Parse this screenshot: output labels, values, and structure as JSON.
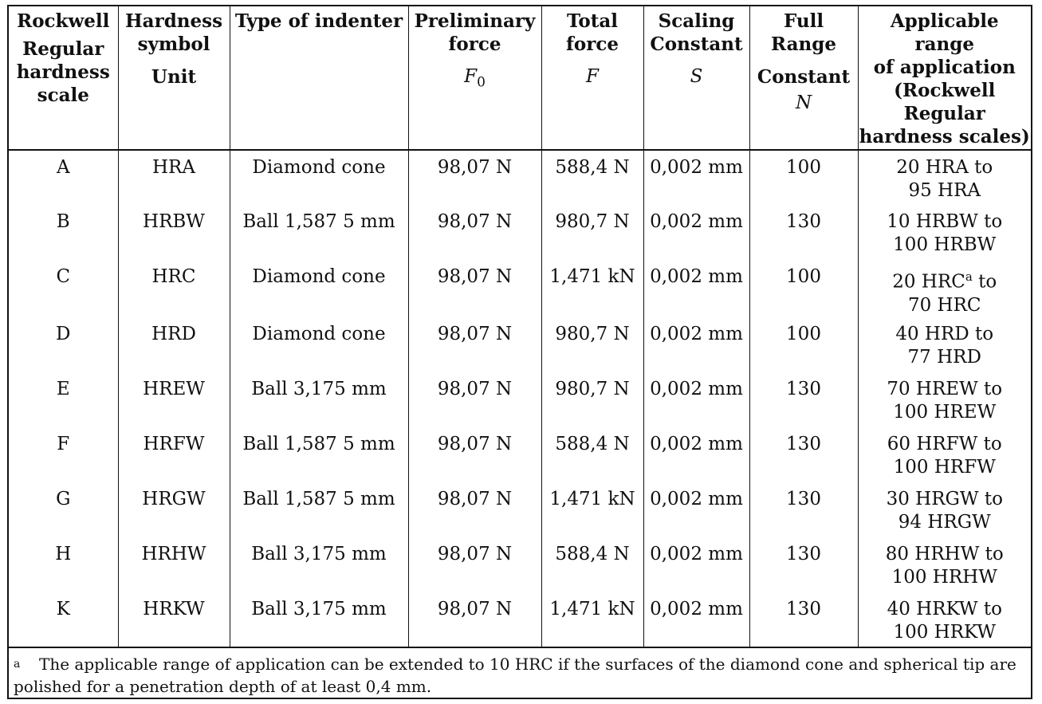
{
  "headers": {
    "scale": [
      "Rockwell",
      "Regular",
      "hardness",
      "scale"
    ],
    "symbol": [
      "Hardness",
      "symbol",
      "Unit"
    ],
    "indenter": [
      "Type of indenter"
    ],
    "preliminary": [
      "Preliminary",
      "force"
    ],
    "preliminary_symbol": "F",
    "preliminary_symbol_sub": "0",
    "total": [
      "Total",
      "force"
    ],
    "total_symbol": "F",
    "scaling": [
      "Scaling",
      "Constant"
    ],
    "scaling_symbol": "S",
    "full": [
      "Full",
      "Range",
      "Constant"
    ],
    "full_symbol": "N",
    "range": [
      "Applicable",
      "range",
      "of application",
      "(Rockwell",
      "Regular",
      "hardness scales)"
    ]
  },
  "rows": [
    {
      "scale": "A",
      "symbol": "HRA",
      "indenter": "Diamond cone",
      "f0": "98,07 N",
      "f": "588,4 N",
      "s": "0,002 mm",
      "n": "100",
      "range1": "20 HRA to",
      "range2": "95 HRA"
    },
    {
      "scale": "B",
      "symbol": "HRBW",
      "indenter": "Ball 1,587 5 mm",
      "f0": "98,07 N",
      "f": "980,7 N",
      "s": "0,002 mm",
      "n": "130",
      "range1": "10 HRBW to",
      "range2": "100 HRBW"
    },
    {
      "scale": "C",
      "symbol": "HRC",
      "indenter": "Diamond cone",
      "f0": "98,07 N",
      "f": "1,471 kN",
      "s": "0,002 mm",
      "n": "100",
      "range1": "20 HRC",
      "range1_sup": "a",
      "range1_tail": " to",
      "range2": "70 HRC"
    },
    {
      "scale": "D",
      "symbol": "HRD",
      "indenter": "Diamond cone",
      "f0": "98,07 N",
      "f": "980,7 N",
      "s": "0,002 mm",
      "n": "100",
      "range1": "40 HRD to",
      "range2": "77 HRD"
    },
    {
      "scale": "E",
      "symbol": "HREW",
      "indenter": "Ball 3,175 mm",
      "f0": "98,07 N",
      "f": "980,7 N",
      "s": "0,002 mm",
      "n": "130",
      "range1": "70 HREW to",
      "range2": "100 HREW"
    },
    {
      "scale": "F",
      "symbol": "HRFW",
      "indenter": "Ball 1,587 5 mm",
      "f0": "98,07 N",
      "f": "588,4 N",
      "s": "0,002 mm",
      "n": "130",
      "range1": "60 HRFW to",
      "range2": "100 HRFW"
    },
    {
      "scale": "G",
      "symbol": "HRGW",
      "indenter": "Ball 1,587 5 mm",
      "f0": "98,07 N",
      "f": "1,471 kN",
      "s": "0,002 mm",
      "n": "130",
      "range1": "30 HRGW to",
      "range2": "94 HRGW"
    },
    {
      "scale": "H",
      "symbol": "HRHW",
      "indenter": "Ball 3,175 mm",
      "f0": "98,07 N",
      "f": "588,4 N",
      "s": "0,002 mm",
      "n": "130",
      "range1": "80 HRHW to",
      "range2": "100 HRHW"
    },
    {
      "scale": "K",
      "symbol": "HRKW",
      "indenter": "Ball 3,175 mm",
      "f0": "98,07 N",
      "f": "1,471 kN",
      "s": "0,002 mm",
      "n": "130",
      "range1": "40 HRKW to",
      "range2": "100 HRKW"
    }
  ],
  "footnote": {
    "mark": "a",
    "text": "The applicable range of application can be extended to 10 HRC if the surfaces of the diamond cone and spherical tip are polished for a penetration depth of at least 0,4 mm."
  }
}
